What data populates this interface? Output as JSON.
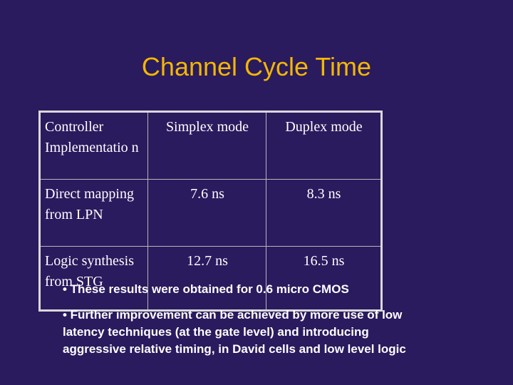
{
  "slide": {
    "title": "Channel Cycle Time"
  },
  "table": {
    "headers": [
      "Controller Implementatio n",
      "Simplex mode",
      "Duplex mode"
    ],
    "rows": [
      {
        "label": "Direct mapping from LPN",
        "simplex": "7.6 ns",
        "duplex": "8.3 ns"
      },
      {
        "label": "Logic synthesis from STG",
        "simplex": "12.7 ns",
        "duplex": "16.5 ns"
      }
    ]
  },
  "bullets": [
    "• These results were obtained for 0.6 micro CMOS",
    "• Further improvement can be achieved by more use of low latency techniques (at the gate level) and introducing aggressive relative timing, in David cells and low level logic"
  ]
}
